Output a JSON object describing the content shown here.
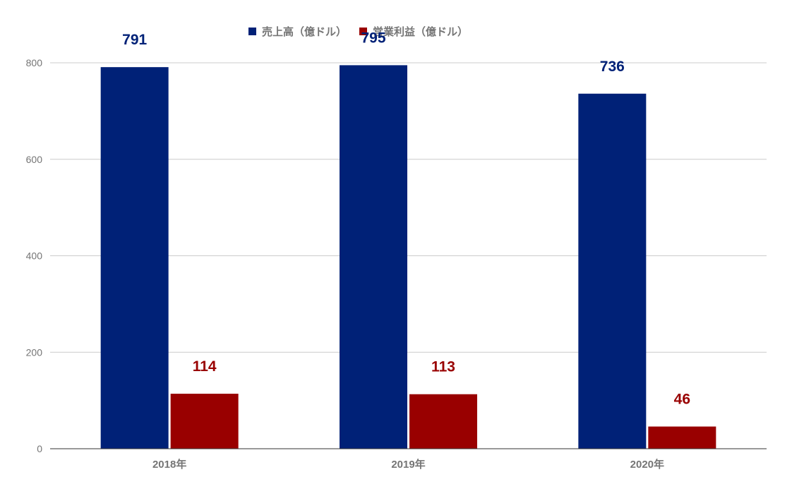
{
  "chart_data": {
    "type": "bar",
    "categories": [
      "2018年",
      "2019年",
      "2020年"
    ],
    "series": [
      {
        "name": "売上高（億ドル）",
        "values": [
          791,
          795,
          736
        ],
        "color": "#002177"
      },
      {
        "name": "営業利益（億ドル）",
        "values": [
          114,
          113,
          46
        ],
        "color": "#990000"
      }
    ],
    "title": "",
    "xlabel": "",
    "ylabel": "",
    "ylim": [
      0,
      800
    ],
    "yticks": [
      0,
      200,
      400,
      600,
      800
    ],
    "grid": true,
    "legend_position": "top",
    "data_labels": true
  }
}
